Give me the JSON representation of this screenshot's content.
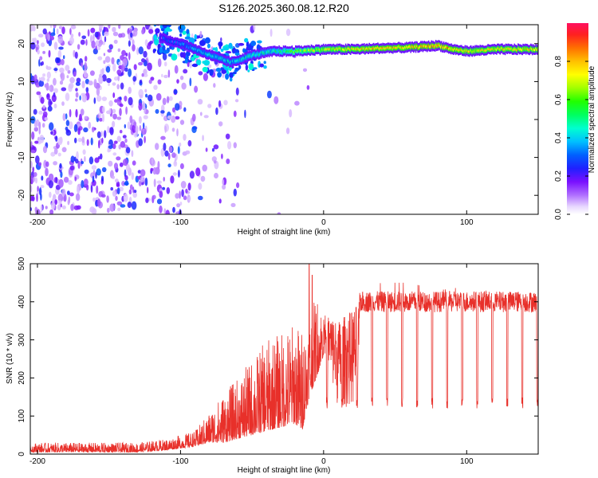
{
  "figure": {
    "title": "S126.2025.360.08.12.R20"
  },
  "chart_data": [
    {
      "type": "heatmap",
      "name": "spectrogram",
      "xlabel": "Height of straight line (km)",
      "ylabel": "Frequency (Hz)",
      "xlim": [
        -205,
        150
      ],
      "ylim": [
        -25,
        25
      ],
      "xticks": [
        -200,
        -100,
        0,
        100
      ],
      "yticks": [
        -20,
        -10,
        0,
        10,
        20
      ],
      "colorbar": {
        "label": "Normalized spectral amplitude",
        "range": [
          0,
          1
        ],
        "ticks": [
          0.0,
          0.2,
          0.4,
          0.6,
          0.8
        ]
      },
      "signal_track": {
        "description": "carrier line",
        "x": [
          -120,
          -100,
          -80,
          -65,
          -50,
          -35,
          -20,
          0,
          20,
          40,
          60,
          80,
          90,
          100,
          120,
          150
        ],
        "frequency": [
          22,
          20,
          17,
          15,
          17,
          18,
          18,
          18.5,
          18.5,
          18.8,
          19,
          19.5,
          18.5,
          18,
          18.5,
          18.5
        ],
        "amplitude": [
          0.3,
          0.4,
          0.5,
          0.5,
          0.55,
          0.55,
          0.7,
          0.8,
          0.85,
          0.9,
          0.9,
          0.95,
          0.9,
          0.85,
          0.85,
          0.85
        ]
      },
      "background_noise": {
        "description": "scattered noise, strongest at x < -120, fading by x = -60",
        "x_range": [
          -205,
          -60
        ],
        "amplitude_range": [
          0.05,
          0.3
        ]
      }
    },
    {
      "type": "line",
      "name": "snr",
      "xlabel": "Height of straight line (km)",
      "ylabel": "SNR (10 * v/v)",
      "xlim": [
        -205,
        150
      ],
      "ylim": [
        0,
        500
      ],
      "xticks": [
        -200,
        -100,
        0,
        100
      ],
      "yticks": [
        0,
        100,
        200,
        300,
        400,
        500
      ],
      "color": "#e8302a",
      "series": [
        {
          "name": "SNR",
          "envelope_x": [
            -205,
            -130,
            -110,
            -90,
            -80,
            -70,
            -60,
            -50,
            -40,
            -30,
            -20,
            -15,
            -10,
            -5,
            0,
            10,
            20,
            30,
            40,
            60,
            80,
            100,
            120,
            150
          ],
          "envelope_low": [
            5,
            5,
            10,
            20,
            30,
            30,
            40,
            50,
            60,
            70,
            80,
            60,
            150,
            200,
            260,
            120,
            120,
            130,
            130,
            130,
            130,
            130,
            130,
            130
          ],
          "envelope_high": [
            30,
            30,
            40,
            60,
            110,
            160,
            200,
            250,
            300,
            320,
            350,
            330,
            360,
            420,
            380,
            350,
            380,
            420,
            450,
            450,
            430,
            440,
            420,
            430
          ],
          "spikes_x": [
            -10,
            -8
          ],
          "spikes_y": [
            500,
            470
          ],
          "dropout_period_km": 10.5,
          "dropout_start_km": 2,
          "dropout_level": 140,
          "plateau_level": 400
        }
      ]
    }
  ]
}
